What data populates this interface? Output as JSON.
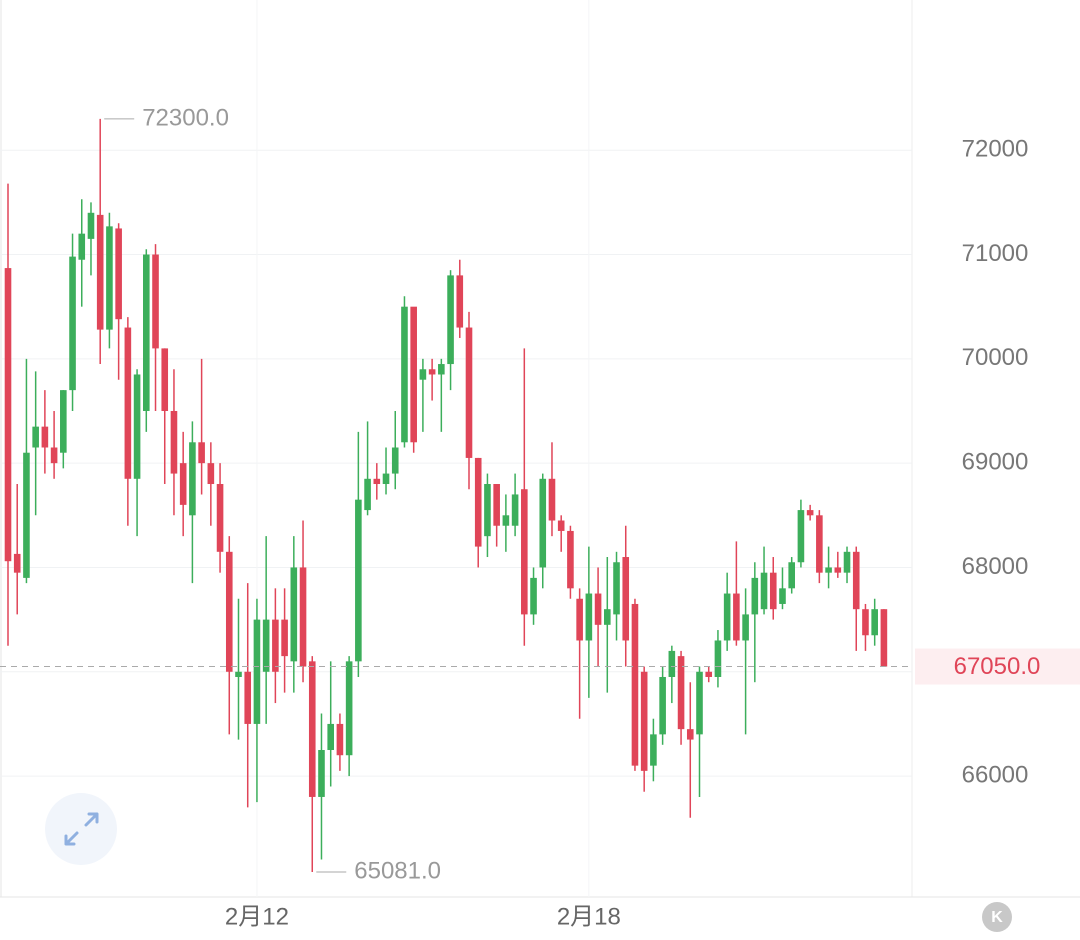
{
  "chart_data": {
    "type": "candlestick",
    "categories": [
      null,
      null,
      null,
      null,
      null,
      null,
      null,
      null,
      null,
      null,
      null,
      null,
      null,
      null,
      null,
      null,
      null,
      null,
      null,
      null,
      null,
      null,
      null,
      null,
      null,
      null,
      null,
      "2月12",
      null,
      null,
      null,
      null,
      null,
      null,
      null,
      null,
      null,
      null,
      null,
      null,
      null,
      null,
      null,
      null,
      null,
      null,
      null,
      null,
      null,
      null,
      null,
      null,
      null,
      null,
      null,
      null,
      null,
      null,
      null,
      null,
      null,
      null,
      null,
      "2月18",
      null,
      null,
      null,
      null,
      null,
      null,
      null,
      null,
      null,
      null,
      null,
      null,
      null,
      null,
      null,
      null,
      null,
      null,
      null,
      null,
      null,
      null,
      null,
      null,
      null,
      null,
      null,
      null,
      null,
      null,
      null,
      null
    ],
    "open": [
      70870,
      68130,
      67900,
      69150,
      69350,
      69150,
      69100,
      69700,
      70950,
      71150,
      71380,
      70280,
      71250,
      70300,
      68850,
      69500,
      71000,
      70100,
      69500,
      69000,
      68500,
      69200,
      69000,
      68800,
      68150,
      66950,
      67000,
      66500,
      67000,
      67500,
      67500,
      67100,
      68000,
      67100,
      65800,
      66250,
      66500,
      66200,
      67100,
      68550,
      68850,
      68800,
      68900,
      69200,
      70500,
      69800,
      69900,
      69850,
      69950,
      70800,
      70300,
      69050,
      68300,
      68800,
      68400,
      68400,
      68750,
      67550,
      68000,
      68850,
      68450,
      68350,
      67700,
      67300,
      67750,
      67450,
      67550,
      68100,
      67650,
      67000,
      66100,
      66400,
      66950,
      67150,
      66450,
      66400,
      67000,
      66950,
      67300,
      67750,
      67300,
      67550,
      67600,
      67950,
      67650,
      67800,
      68050,
      68550,
      68500,
      67950,
      68000,
      67950,
      68150,
      67600,
      67350,
      67600
    ],
    "high": [
      71680,
      68800,
      70000,
      69880,
      69700,
      69500,
      69700,
      71200,
      71530,
      71500,
      72300,
      71400,
      71300,
      70400,
      69900,
      71050,
      71100,
      70100,
      69900,
      69300,
      69400,
      70000,
      69200,
      69000,
      68300,
      67700,
      67850,
      67700,
      68300,
      67800,
      67800,
      68300,
      68450,
      67150,
      66600,
      67100,
      66600,
      67150,
      69300,
      69400,
      69000,
      69150,
      69500,
      70600,
      70450,
      70000,
      70000,
      70000,
      70850,
      70950,
      70450,
      69050,
      68900,
      68800,
      68700,
      68900,
      70100,
      68000,
      68900,
      69200,
      68500,
      68400,
      67800,
      68200,
      68000,
      68100,
      68150,
      68400,
      67700,
      67050,
      66550,
      67050,
      67250,
      67200,
      66900,
      67050,
      67050,
      67400,
      67950,
      68250,
      67800,
      68050,
      68200,
      68100,
      68000,
      68100,
      68650,
      68600,
      68550,
      68200,
      68150,
      68200,
      68200,
      67650,
      67700,
      67600
    ],
    "low": [
      67250,
      67550,
      67850,
      68500,
      68900,
      68850,
      68950,
      69500,
      70500,
      70800,
      69950,
      70100,
      69800,
      68400,
      68300,
      69300,
      69500,
      68800,
      68500,
      68300,
      67850,
      68700,
      68400,
      67950,
      66400,
      66350,
      65700,
      65750,
      66500,
      66700,
      66800,
      66800,
      66900,
      65081,
      65200,
      65900,
      66050,
      66000,
      66950,
      68500,
      68650,
      68700,
      68750,
      69150,
      69100,
      69300,
      69600,
      69300,
      69700,
      70200,
      68750,
      68000,
      68100,
      68200,
      68150,
      68300,
      67250,
      67450,
      67800,
      68300,
      68150,
      67700,
      66550,
      66750,
      67050,
      66800,
      67300,
      67050,
      66050,
      65850,
      65950,
      66300,
      66700,
      66300,
      65600,
      65800,
      66900,
      66850,
      67200,
      67250,
      66400,
      66900,
      67550,
      67500,
      67600,
      67750,
      68000,
      68450,
      67850,
      67800,
      67900,
      67850,
      67200,
      67200,
      67250,
      67050
    ],
    "close": [
      68060,
      67950,
      69100,
      69350,
      69150,
      69000,
      69700,
      70980,
      71200,
      71400,
      70280,
      71270,
      70380,
      68850,
      69850,
      71000,
      70100,
      69500,
      68900,
      68600,
      69200,
      69000,
      68800,
      68150,
      67000,
      67000,
      66500,
      67500,
      67500,
      67000,
      67150,
      68000,
      67050,
      65800,
      66250,
      66500,
      66200,
      67100,
      68650,
      68850,
      68800,
      68900,
      69150,
      70500,
      69200,
      69900,
      69850,
      69950,
      70800,
      70300,
      69050,
      68200,
      68800,
      68400,
      68500,
      68700,
      67550,
      67900,
      68850,
      68450,
      68350,
      67800,
      67300,
      67750,
      67450,
      67600,
      68050,
      67300,
      66100,
      66050,
      66400,
      66950,
      67200,
      66450,
      66350,
      67000,
      66950,
      67300,
      67750,
      67300,
      67550,
      67900,
      67950,
      67600,
      67800,
      68050,
      68550,
      68500,
      67950,
      68000,
      67950,
      68150,
      67600,
      67350,
      67600,
      67050
    ],
    "up_color": "#3cae5b",
    "down_color": "#e04558",
    "ylim": [
      64860,
      73440
    ],
    "yticks": [
      66000,
      67000,
      68000,
      69000,
      70000,
      71000,
      72000
    ],
    "hidden_tick_labels_note_free": null,
    "grid": true,
    "annotations": [
      {
        "value": 72300,
        "label": "72300.0"
      },
      {
        "value": 65081,
        "label": "65081.0"
      }
    ],
    "last_price": {
      "value": 67050,
      "label": "67050.0"
    },
    "logo": "K"
  }
}
